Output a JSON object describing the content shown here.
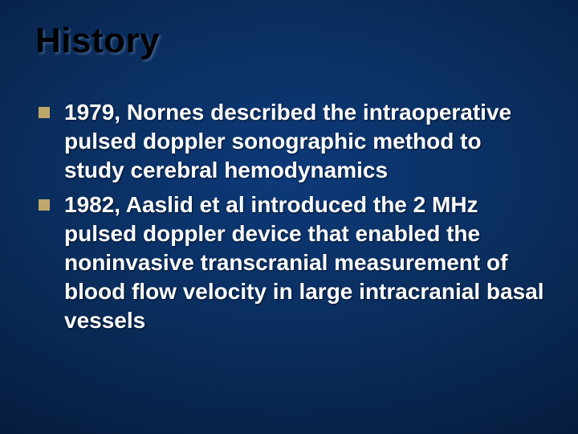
{
  "slide": {
    "title": "History",
    "title_fontsize": 44,
    "title_color": "#000000",
    "background_gradient": {
      "type": "radial",
      "stops": [
        "#0d3a7a",
        "#0a2d5c",
        "#061a3a",
        "#020a1a"
      ]
    },
    "bullet_marker_color": "#bfa76a",
    "bullet_fontsize": 28,
    "bullet_color": "#ffffff",
    "bullets": [
      {
        "text": "1979, Nornes described the intraoperative pulsed doppler sonographic method to study cerebral hemodynamics"
      },
      {
        "text": "1982, Aaslid et al introduced the 2 MHz pulsed doppler device that enabled the noninvasive transcranial measurement of blood flow velocity in large intracranial basal vessels"
      }
    ]
  }
}
